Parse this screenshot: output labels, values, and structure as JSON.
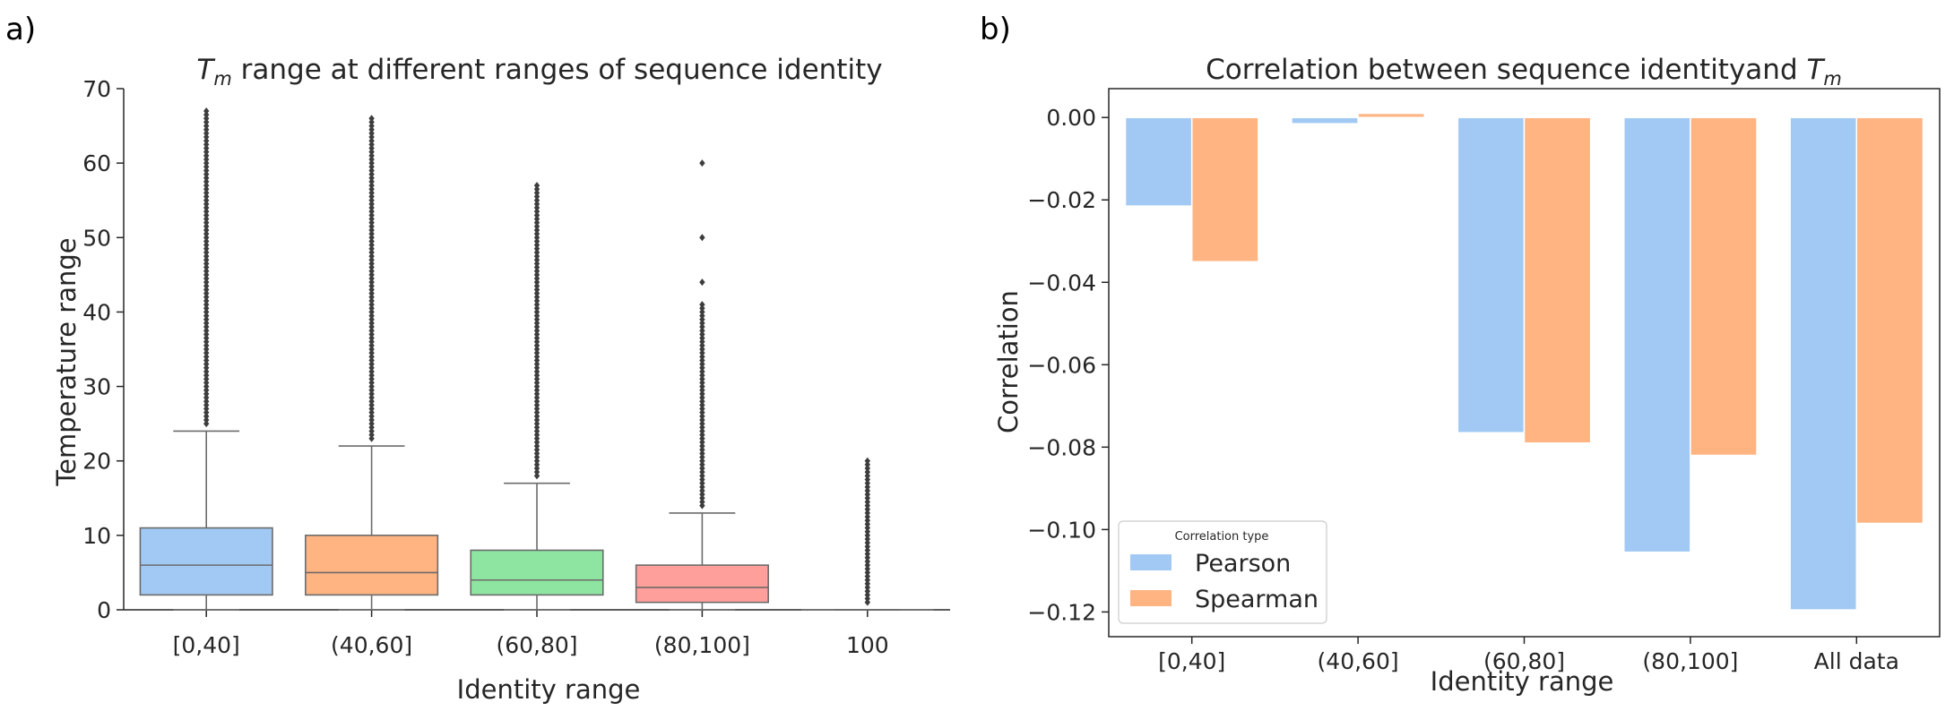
{
  "panels": {
    "a": {
      "label": "a)"
    },
    "b": {
      "label": "b)"
    }
  },
  "chart_data": [
    {
      "type": "box",
      "title_prefix": "T",
      "title_sub": "m",
      "title_rest": " range at different ranges of sequence identity",
      "xlabel": "Identity range",
      "ylabel": "Temperature range",
      "ylim": [
        0,
        70
      ],
      "yticks": [
        0,
        10,
        20,
        30,
        40,
        50,
        60,
        70
      ],
      "grid": false,
      "categories": [
        "[0,40]",
        "(40,60]",
        "(60,80]",
        "(80,100]",
        "100"
      ],
      "colors": [
        "#a1c9f4",
        "#ffb482",
        "#8de5a1",
        "#ff9f9b",
        "#d0bbff"
      ],
      "boxes": [
        {
          "category": "[0,40]",
          "whislo": 0,
          "q1": 2,
          "median": 6,
          "q3": 11,
          "whishi": 24,
          "outliers_from": 25,
          "outliers_to": 67
        },
        {
          "category": "(40,60]",
          "whislo": 0,
          "q1": 2,
          "median": 5,
          "q3": 10,
          "whishi": 22,
          "outliers_from": 23,
          "outliers_to": 66
        },
        {
          "category": "(60,80]",
          "whislo": 0,
          "q1": 2,
          "median": 4,
          "q3": 8,
          "whishi": 17,
          "outliers_from": 18,
          "outliers_to": 57
        },
        {
          "category": "(80,100]",
          "whislo": 0,
          "q1": 1,
          "median": 3,
          "q3": 6,
          "whishi": 13,
          "outliers_from": 14,
          "outliers_to": 41,
          "extra_outliers": [
            44,
            50,
            60
          ]
        },
        {
          "category": "100",
          "whislo": 0,
          "q1": 0,
          "median": 0,
          "q3": 0,
          "whishi": 0,
          "outliers_from": 1,
          "outliers_to": 20
        }
      ]
    },
    {
      "type": "bar",
      "title_main": "Correlation between sequence identityand ",
      "title_sym": "T",
      "title_sub": "m",
      "xlabel": "Identity range",
      "ylabel": "Correlation",
      "ylim": [
        -0.126,
        0.007
      ],
      "yticks": [
        0.0,
        -0.02,
        -0.04,
        -0.06,
        -0.08,
        -0.1,
        -0.12
      ],
      "ytick_labels": [
        "0.00",
        "−0.02",
        "−0.04",
        "−0.06",
        "−0.08",
        "−0.10",
        "−0.12"
      ],
      "grid": false,
      "categories": [
        "[0,40]",
        "(40,60]",
        "(60,80]",
        "(80,100]",
        "All data"
      ],
      "series": [
        {
          "name": "Pearson",
          "color": "#a1c9f4",
          "values": [
            -0.0215,
            -0.0015,
            -0.0765,
            -0.1055,
            -0.1195
          ]
        },
        {
          "name": "Spearman",
          "color": "#ffb482",
          "values": [
            -0.035,
            0.001,
            -0.079,
            -0.082,
            -0.0985
          ]
        }
      ],
      "legend": {
        "title": "Correlation type",
        "placement": "lower-left"
      }
    }
  ]
}
